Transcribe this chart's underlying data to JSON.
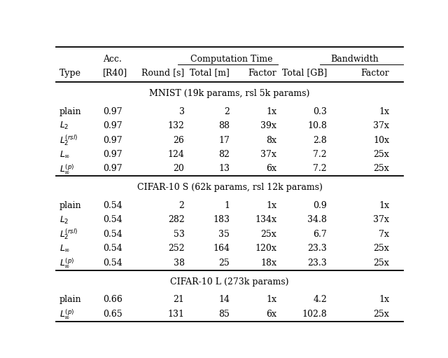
{
  "sections": [
    {
      "section_title": "MNIST (19k params, rsl 5k params)",
      "rows": [
        {
          "type": "plain",
          "acc": "0.97",
          "round_s": "3",
          "total_m": "2",
          "factor_c": "1x",
          "total_gb": "0.3",
          "factor_b": "1x"
        },
        {
          "type": "L_2",
          "acc": "0.97",
          "round_s": "132",
          "total_m": "88",
          "factor_c": "39x",
          "total_gb": "10.8",
          "factor_b": "37x"
        },
        {
          "type": "L_2rsl",
          "acc": "0.97",
          "round_s": "26",
          "total_m": "17",
          "factor_c": "8x",
          "total_gb": "2.8",
          "factor_b": "10x"
        },
        {
          "type": "L_inf",
          "acc": "0.97",
          "round_s": "124",
          "total_m": "82",
          "factor_c": "37x",
          "total_gb": "7.2",
          "factor_b": "25x"
        },
        {
          "type": "L_infp",
          "acc": "0.97",
          "round_s": "20",
          "total_m": "13",
          "factor_c": "6x",
          "total_gb": "7.2",
          "factor_b": "25x"
        }
      ]
    },
    {
      "section_title": "CIFAR-10 S (62k params, rsl 12k params)",
      "rows": [
        {
          "type": "plain",
          "acc": "0.54",
          "round_s": "2",
          "total_m": "1",
          "factor_c": "1x",
          "total_gb": "0.9",
          "factor_b": "1x"
        },
        {
          "type": "L_2",
          "acc": "0.54",
          "round_s": "282",
          "total_m": "183",
          "factor_c": "134x",
          "total_gb": "34.8",
          "factor_b": "37x"
        },
        {
          "type": "L_2rsl",
          "acc": "0.54",
          "round_s": "53",
          "total_m": "35",
          "factor_c": "25x",
          "total_gb": "6.7",
          "factor_b": "7x"
        },
        {
          "type": "L_inf",
          "acc": "0.54",
          "round_s": "252",
          "total_m": "164",
          "factor_c": "120x",
          "total_gb": "23.3",
          "factor_b": "25x"
        },
        {
          "type": "L_infp",
          "acc": "0.54",
          "round_s": "38",
          "total_m": "25",
          "factor_c": "18x",
          "total_gb": "23.3",
          "factor_b": "25x"
        }
      ]
    },
    {
      "section_title": "CIFAR-10 L (273k params)",
      "rows": [
        {
          "type": "plain",
          "acc": "0.66",
          "round_s": "21",
          "total_m": "14",
          "factor_c": "1x",
          "total_gb": "4.2",
          "factor_b": "1x"
        },
        {
          "type": "L_infp",
          "acc": "0.65",
          "round_s": "131",
          "total_m": "85",
          "factor_c": "6x",
          "total_gb": "102.8",
          "factor_b": "25x"
        }
      ]
    }
  ],
  "font_size": 9.0,
  "background_color": "#ffffff"
}
